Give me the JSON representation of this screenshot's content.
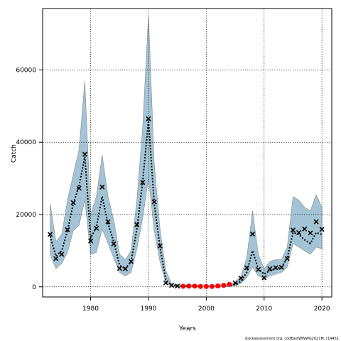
{
  "chart_data": {
    "type": "line",
    "title": "",
    "xlabel": "Years",
    "ylabel": "Catch",
    "xlim": [
      1971.7,
      2021.7
    ],
    "ylim": [
      -2800,
      77000
    ],
    "x_ticks": [
      1980,
      1990,
      2000,
      2010,
      2020
    ],
    "y_ticks": [
      0,
      20000,
      40000,
      60000
    ],
    "x_tick_labels": [
      "1980",
      "1990",
      "2000",
      "2010",
      "2020"
    ],
    "y_tick_labels": [
      "0",
      "20000",
      "40000",
      "60000"
    ],
    "grid": true,
    "credit": "stockassessment.org, codEastWWWG2021M, r14451",
    "colors": {
      "band": "#a3c4d5",
      "band_edge": "#8a8a8a",
      "estimate": "#000000",
      "observed": "#000000",
      "missing": "#ff0000"
    },
    "years": [
      1973,
      1974,
      1975,
      1976,
      1977,
      1978,
      1979,
      1980,
      1981,
      1982,
      1983,
      1984,
      1985,
      1986,
      1987,
      1988,
      1989,
      1990,
      1991,
      1992,
      1993,
      1994,
      1995,
      1996,
      1997,
      1998,
      1999,
      2000,
      2001,
      2002,
      2003,
      2004,
      2005,
      2006,
      2007,
      2008,
      2009,
      2010,
      2011,
      2012,
      2013,
      2014,
      2015,
      2016,
      2017,
      2018,
      2019,
      2020
    ],
    "estimate": [
      14000,
      8500,
      10000,
      15500,
      23000,
      28000,
      36000,
      13500,
      16500,
      25000,
      17500,
      12500,
      6000,
      5000,
      7000,
      16000,
      29000,
      46000,
      23000,
      11000,
      2000,
      400,
      250,
      200,
      200,
      200,
      150,
      150,
      150,
      200,
      250,
      300,
      700,
      1500,
      4000,
      10000,
      5000,
      3500,
      4500,
      5000,
      5500,
      8000,
      15000,
      14500,
      13000,
      12000,
      15000,
      14500
    ],
    "lower": [
      9000,
      5000,
      6500,
      9500,
      15500,
      17000,
      24000,
      9000,
      9500,
      16000,
      12000,
      8000,
      4000,
      3000,
      4000,
      10500,
      19000,
      30000,
      15500,
      7000,
      1000,
      100,
      50,
      50,
      50,
      50,
      50,
      50,
      50,
      50,
      50,
      100,
      300,
      1000,
      2500,
      5500,
      3000,
      2200,
      3000,
      3500,
      4000,
      5500,
      12000,
      11000,
      10000,
      9000,
      11000,
      10500
    ],
    "upper": [
      23000,
      12500,
      14500,
      24000,
      31000,
      38000,
      57000,
      20000,
      25000,
      36500,
      25000,
      18500,
      9000,
      7500,
      10000,
      24000,
      44000,
      75000,
      34000,
      16000,
      4500,
      900,
      600,
      500,
      500,
      500,
      400,
      400,
      400,
      500,
      600,
      800,
      1200,
      3000,
      8000,
      21000,
      9000,
      5000,
      7000,
      7500,
      7500,
      11000,
      25000,
      24000,
      22000,
      21000,
      25500,
      22000
    ],
    "observed": [
      {
        "x": 1973,
        "y": 14500
      },
      {
        "x": 1974,
        "y": 7800
      },
      {
        "x": 1975,
        "y": 9000
      },
      {
        "x": 1976,
        "y": 15800
      },
      {
        "x": 1977,
        "y": 23300
      },
      {
        "x": 1978,
        "y": 27300
      },
      {
        "x": 1979,
        "y": 36700
      },
      {
        "x": 1980,
        "y": 12700
      },
      {
        "x": 1981,
        "y": 16200
      },
      {
        "x": 1982,
        "y": 27600
      },
      {
        "x": 1983,
        "y": 18000
      },
      {
        "x": 1984,
        "y": 11900
      },
      {
        "x": 1985,
        "y": 5100
      },
      {
        "x": 1986,
        "y": 5000
      },
      {
        "x": 1987,
        "y": 7000
      },
      {
        "x": 1988,
        "y": 17200
      },
      {
        "x": 1989,
        "y": 28900
      },
      {
        "x": 1990,
        "y": 46500
      },
      {
        "x": 1991,
        "y": 23500
      },
      {
        "x": 1992,
        "y": 11300
      },
      {
        "x": 1993,
        "y": 1100
      },
      {
        "x": 1994,
        "y": 400
      },
      {
        "x": 1995,
        "y": 200
      },
      {
        "x": 2005,
        "y": 1100
      },
      {
        "x": 2006,
        "y": 2400
      },
      {
        "x": 2007,
        "y": 5300
      },
      {
        "x": 2008,
        "y": 14600
      },
      {
        "x": 2009,
        "y": 4800
      },
      {
        "x": 2010,
        "y": 2500
      },
      {
        "x": 2011,
        "y": 5000
      },
      {
        "x": 2012,
        "y": 5300
      },
      {
        "x": 2013,
        "y": 5400
      },
      {
        "x": 2014,
        "y": 7800
      },
      {
        "x": 2015,
        "y": 15700
      },
      {
        "x": 2016,
        "y": 15000
      },
      {
        "x": 2017,
        "y": 16000
      },
      {
        "x": 2018,
        "y": 14900
      },
      {
        "x": 2019,
        "y": 18000
      },
      {
        "x": 2020,
        "y": 15900
      }
    ],
    "missing_observations": [
      {
        "x": 1996,
        "y": 150
      },
      {
        "x": 1997,
        "y": 200
      },
      {
        "x": 1998,
        "y": 200
      },
      {
        "x": 1999,
        "y": 100
      },
      {
        "x": 2000,
        "y": 100
      },
      {
        "x": 2001,
        "y": 100
      },
      {
        "x": 2002,
        "y": 250
      },
      {
        "x": 2003,
        "y": 400
      },
      {
        "x": 2004,
        "y": 700
      }
    ]
  }
}
